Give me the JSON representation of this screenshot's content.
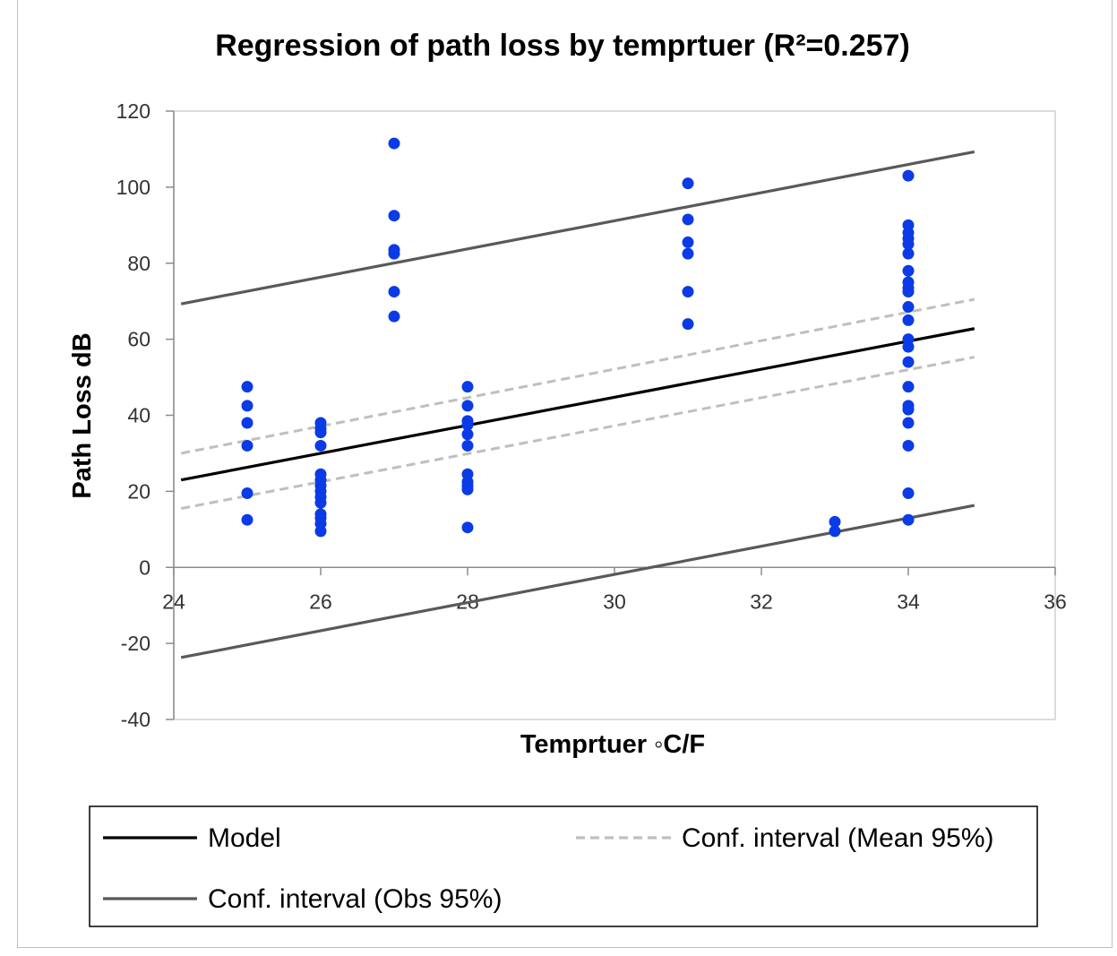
{
  "chart_data": {
    "type": "scatter",
    "title": "Regression of path loss by temprtuer (R²=0.257)",
    "xlabel": "Temprtuer ◦C/F",
    "ylabel": "Path Loss dB",
    "xlim": [
      24,
      36
    ],
    "ylim": [
      -40,
      120
    ],
    "x_ticks": [
      "24",
      "26",
      "28",
      "30",
      "32",
      "34",
      "36"
    ],
    "y_ticks": [
      "120",
      "100",
      "80",
      "60",
      "40",
      "20",
      "0",
      "-20",
      "-40"
    ],
    "grid": false,
    "legend_placement": "bottom",
    "points_color": "#0a3be6",
    "points": [
      {
        "x": 25,
        "y": 47.5
      },
      {
        "x": 25,
        "y": 42.5
      },
      {
        "x": 25,
        "y": 38
      },
      {
        "x": 25,
        "y": 32
      },
      {
        "x": 25,
        "y": 19.5
      },
      {
        "x": 25,
        "y": 12.5
      },
      {
        "x": 26,
        "y": 38
      },
      {
        "x": 26,
        "y": 36.5
      },
      {
        "x": 26,
        "y": 35.5
      },
      {
        "x": 26,
        "y": 32
      },
      {
        "x": 26,
        "y": 24.5
      },
      {
        "x": 26,
        "y": 23
      },
      {
        "x": 26,
        "y": 21.5
      },
      {
        "x": 26,
        "y": 20
      },
      {
        "x": 26,
        "y": 18.5
      },
      {
        "x": 26,
        "y": 17
      },
      {
        "x": 26,
        "y": 14
      },
      {
        "x": 26,
        "y": 13
      },
      {
        "x": 26,
        "y": 11.5
      },
      {
        "x": 26,
        "y": 9.5
      },
      {
        "x": 27,
        "y": 111.5
      },
      {
        "x": 27,
        "y": 92.5
      },
      {
        "x": 27,
        "y": 83.5
      },
      {
        "x": 27,
        "y": 82.5
      },
      {
        "x": 27,
        "y": 72.5
      },
      {
        "x": 27,
        "y": 66
      },
      {
        "x": 28,
        "y": 47.5
      },
      {
        "x": 28,
        "y": 42.5
      },
      {
        "x": 28,
        "y": 38.5
      },
      {
        "x": 28,
        "y": 37.5
      },
      {
        "x": 28,
        "y": 35
      },
      {
        "x": 28,
        "y": 32
      },
      {
        "x": 28,
        "y": 24.5
      },
      {
        "x": 28,
        "y": 22.5
      },
      {
        "x": 28,
        "y": 21.5
      },
      {
        "x": 28,
        "y": 20.5
      },
      {
        "x": 28,
        "y": 10.5
      },
      {
        "x": 31,
        "y": 101
      },
      {
        "x": 31,
        "y": 91.5
      },
      {
        "x": 31,
        "y": 85.5
      },
      {
        "x": 31,
        "y": 82.5
      },
      {
        "x": 31,
        "y": 72.5
      },
      {
        "x": 31,
        "y": 64
      },
      {
        "x": 33,
        "y": 12
      },
      {
        "x": 33,
        "y": 9.5
      },
      {
        "x": 34,
        "y": 103
      },
      {
        "x": 34,
        "y": 90
      },
      {
        "x": 34,
        "y": 88
      },
      {
        "x": 34,
        "y": 86.5
      },
      {
        "x": 34,
        "y": 85
      },
      {
        "x": 34,
        "y": 82.5
      },
      {
        "x": 34,
        "y": 78
      },
      {
        "x": 34,
        "y": 75
      },
      {
        "x": 34,
        "y": 73.5
      },
      {
        "x": 34,
        "y": 72.5
      },
      {
        "x": 34,
        "y": 68.5
      },
      {
        "x": 34,
        "y": 65
      },
      {
        "x": 34,
        "y": 60
      },
      {
        "x": 34,
        "y": 58
      },
      {
        "x": 34,
        "y": 54
      },
      {
        "x": 34,
        "y": 47.5
      },
      {
        "x": 34,
        "y": 42.5
      },
      {
        "x": 34,
        "y": 41.5
      },
      {
        "x": 34,
        "y": 38
      },
      {
        "x": 34,
        "y": 32
      },
      {
        "x": 34,
        "y": 19.5
      },
      {
        "x": 34,
        "y": 12.5
      }
    ],
    "lines": [
      {
        "name": "Model",
        "style": "solid",
        "color": "#000000",
        "x": [
          24.1,
          34.9
        ],
        "y": [
          23,
          62.8
        ]
      },
      {
        "name": "Conf. interval (Mean 95%)",
        "style": "dashed",
        "color": "#bfbfbf",
        "x": [
          24.1,
          34.9
        ],
        "y": [
          30,
          70.5
        ]
      },
      {
        "name": "Conf. interval (Mean 95%)",
        "style": "dashed",
        "color": "#bfbfbf",
        "x": [
          24.1,
          34.9
        ],
        "y": [
          15.5,
          55.3
        ]
      },
      {
        "name": "Conf. interval (Obs 95%)",
        "style": "solid",
        "color": "#595959",
        "x": [
          24.1,
          34.9
        ],
        "y": [
          69.3,
          109.3
        ]
      },
      {
        "name": "Conf. interval (Obs 95%)",
        "style": "solid",
        "color": "#595959",
        "x": [
          24.1,
          34.9
        ],
        "y": [
          -23.7,
          16.3
        ]
      }
    ],
    "legend": [
      {
        "label": "Model",
        "style": "solid",
        "color": "#000000"
      },
      {
        "label": "Conf. interval (Mean 95%)",
        "style": "dashed",
        "color": "#bfbfbf"
      },
      {
        "label": "Conf. interval (Obs 95%)",
        "style": "solid",
        "color": "#595959"
      }
    ]
  }
}
